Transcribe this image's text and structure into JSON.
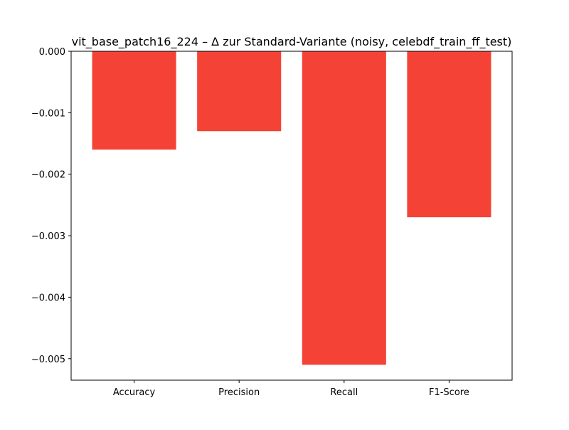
{
  "chart_data": {
    "type": "bar",
    "title": "vit_base_patch16_224 – Δ zur Standard-Variante (noisy, celebdf_train_ff_test)",
    "xlabel": "",
    "ylabel": "",
    "categories": [
      "Accuracy",
      "Precision",
      "Recall",
      "F1-Score"
    ],
    "values": [
      -0.0016,
      -0.0013,
      -0.0051,
      -0.0027
    ],
    "ylim": [
      -0.00535,
      0.0
    ],
    "yticks": [
      0.0,
      -0.001,
      -0.002,
      -0.003,
      -0.004,
      -0.005
    ],
    "ytick_labels": [
      "0.000",
      "−0.001",
      "−0.002",
      "−0.003",
      "−0.004",
      "−0.005"
    ],
    "bar_color": "#f44336",
    "grid": false,
    "legend": "none"
  }
}
